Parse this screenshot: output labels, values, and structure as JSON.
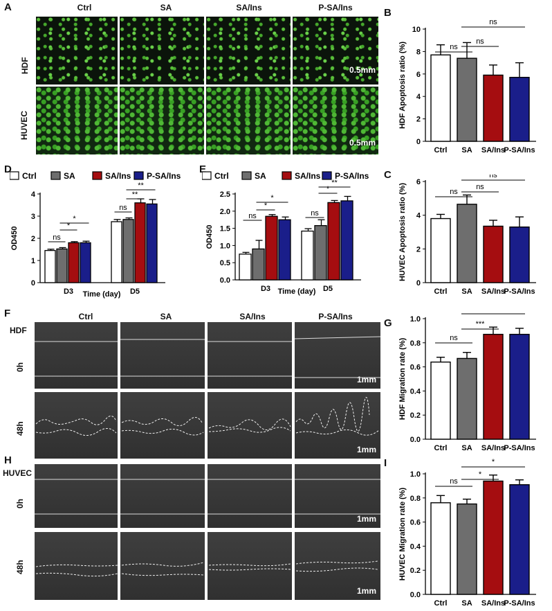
{
  "panel_labels": {
    "A": "A",
    "B": "B",
    "C": "C",
    "D": "D",
    "E": "E",
    "F": "F",
    "G": "G",
    "H": "H",
    "I": "I"
  },
  "groups": [
    "Ctrl",
    "SA",
    "SA/Ins",
    "P-SA/Ins"
  ],
  "colors": {
    "Ctrl": "#ffffff",
    "SA": "#6e6e6e",
    "SA/Ins": "#a50d10",
    "P-SA/Ins": "#1a1e8a"
  },
  "panelA": {
    "row1": "HDF",
    "row2": "HUVEC",
    "scale": "0.5mm"
  },
  "panelF": {
    "cell": "HDF",
    "t0": "0h",
    "t48": "48h",
    "scale": "1mm"
  },
  "panelH": {
    "cell": "HUVEC",
    "t0": "0h",
    "t48": "48h",
    "scale": "1mm"
  },
  "chart_data": [
    {
      "id": "B",
      "type": "bar",
      "categories": [
        "Ctrl",
        "SA",
        "SA/Ins",
        "P-SA/Ins"
      ],
      "values": [
        7.7,
        7.4,
        5.9,
        5.7
      ],
      "errors": [
        0.9,
        1.4,
        0.9,
        1.3
      ],
      "ylabel": "HDF Apoptosis ratio (%)",
      "ylim": [
        0,
        10
      ],
      "yticks": [
        0,
        2,
        4,
        6,
        8,
        10
      ],
      "sig": [
        "ns",
        "ns",
        "ns"
      ]
    },
    {
      "id": "C",
      "type": "bar",
      "categories": [
        "Ctrl",
        "SA",
        "SA/Ins",
        "P-SA/Ins"
      ],
      "values": [
        3.8,
        4.65,
        3.35,
        3.3
      ],
      "errors": [
        0.25,
        0.55,
        0.35,
        0.6
      ],
      "ylabel": "HUVEC Apoptosis ratio (%)",
      "ylim": [
        0,
        6
      ],
      "yticks": [
        0,
        2,
        4,
        6
      ],
      "sig": [
        "ns",
        "ns",
        "ns"
      ]
    },
    {
      "id": "D",
      "type": "bar",
      "categories": [
        "D3",
        "D5"
      ],
      "xlabel": "Time (day)",
      "ylabel": "OD450",
      "ylim": [
        0,
        4
      ],
      "yticks": [
        0,
        1,
        2,
        3,
        4
      ],
      "series": [
        {
          "name": "Ctrl",
          "values": [
            1.45,
            2.75
          ],
          "errors": [
            0.06,
            0.1
          ]
        },
        {
          "name": "SA",
          "values": [
            1.52,
            2.85
          ],
          "errors": [
            0.06,
            0.07
          ]
        },
        {
          "name": "SA/Ins",
          "values": [
            1.8,
            3.6
          ],
          "errors": [
            0.05,
            0.18
          ]
        },
        {
          "name": "P-SA/Ins",
          "values": [
            1.8,
            3.55
          ],
          "errors": [
            0.07,
            0.2
          ]
        }
      ],
      "sig": [
        "ns",
        "*",
        "*",
        "ns",
        "**",
        "**"
      ]
    },
    {
      "id": "E",
      "type": "bar",
      "categories": [
        "D3",
        "D5"
      ],
      "xlabel": "Time (day)",
      "ylabel": "OD450",
      "ylim": [
        0,
        2.5
      ],
      "yticks": [
        "0.0",
        "0.5",
        "1.0",
        "1.5",
        "2.0",
        "2.5"
      ],
      "series": [
        {
          "name": "Ctrl",
          "values": [
            0.75,
            1.42
          ],
          "errors": [
            0.05,
            0.07
          ]
        },
        {
          "name": "SA",
          "values": [
            0.9,
            1.58
          ],
          "errors": [
            0.25,
            0.17
          ]
        },
        {
          "name": "SA/Ins",
          "values": [
            1.85,
            2.25
          ],
          "errors": [
            0.05,
            0.06
          ]
        },
        {
          "name": "P-SA/Ins",
          "values": [
            1.75,
            2.3
          ],
          "errors": [
            0.08,
            0.13
          ]
        }
      ],
      "sig": [
        "ns",
        "*",
        "*",
        "ns",
        "*",
        "**"
      ]
    },
    {
      "id": "G",
      "type": "bar",
      "categories": [
        "Ctrl",
        "SA",
        "SA/Ins",
        "P-SA/Ins"
      ],
      "values": [
        0.64,
        0.67,
        0.87,
        0.87
      ],
      "errors": [
        0.04,
        0.05,
        0.06,
        0.05
      ],
      "ylabel": "HDF Migration rate (%)",
      "ylim": [
        0,
        1.0
      ],
      "yticks": [
        "0.0",
        "0.2",
        "0.4",
        "0.6",
        "0.8",
        "1.0"
      ],
      "sig": [
        "ns",
        "***",
        "***"
      ]
    },
    {
      "id": "I",
      "type": "bar",
      "categories": [
        "Ctrl",
        "SA",
        "SA/Ins",
        "P-SA/Ins"
      ],
      "values": [
        0.76,
        0.75,
        0.94,
        0.91
      ],
      "errors": [
        0.06,
        0.04,
        0.05,
        0.04
      ],
      "ylabel": "HUVEC Migration rate (%)",
      "ylim": [
        0,
        1.0
      ],
      "yticks": [
        "0.0",
        "0.2",
        "0.4",
        "0.6",
        "0.8",
        "1.0"
      ],
      "sig": [
        "ns",
        "*",
        "*"
      ]
    }
  ]
}
